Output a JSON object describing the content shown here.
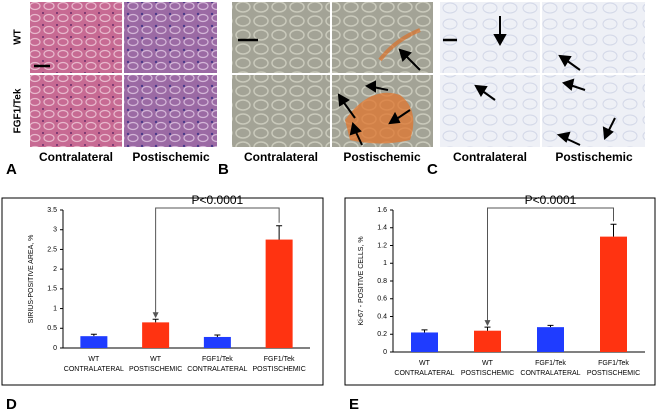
{
  "panels": [
    {
      "letter": "A",
      "row_labels": [
        "WT",
        "FGF1/Tek"
      ],
      "col_labels": [
        "Contralateral",
        "Postischemic"
      ]
    },
    {
      "letter": "B",
      "col_labels": [
        "Contralateral",
        "Postischemic"
      ]
    },
    {
      "letter": "C",
      "col_labels": [
        "Contralateral",
        "Postischemic"
      ]
    }
  ],
  "chart_data": [
    {
      "type": "bar",
      "letter": "D",
      "ylabel": "SIRIUS-POSITIVE AREA, %",
      "categories": [
        [
          "WT",
          "CONTRALATERAL"
        ],
        [
          "WT",
          "POSTISCHEMIC"
        ],
        [
          "FGF1/Tek",
          "CONTRALATERAL"
        ],
        [
          "FGF1/Tek",
          "POSTISCHEMIC"
        ]
      ],
      "values": [
        0.3,
        0.65,
        0.28,
        2.75
      ],
      "errors": [
        0.05,
        0.08,
        0.05,
        0.35
      ],
      "colors": [
        "#1f3cff",
        "#ff3311",
        "#1f3cff",
        "#ff3311"
      ],
      "ylim": [
        0,
        3.5
      ],
      "yticks": [
        0,
        0.5,
        1,
        1.5,
        2,
        2.5,
        3,
        3.5
      ],
      "annotation": "P<0.0001"
    },
    {
      "type": "bar",
      "letter": "E",
      "ylabel": "Ki-67 - POSITIVE CELLS, %",
      "categories": [
        [
          "WT",
          "CONTRALATERAL"
        ],
        [
          "WT",
          "POSTISCHEMIC"
        ],
        [
          "FGF1/Tek",
          "CONTRALATERAL"
        ],
        [
          "FGF1/Tek",
          "POSTISCHEMIC"
        ]
      ],
      "values": [
        0.22,
        0.24,
        0.28,
        1.3
      ],
      "errors": [
        0.03,
        0.04,
        0.02,
        0.14
      ],
      "colors": [
        "#1f3cff",
        "#ff3311",
        "#1f3cff",
        "#ff3311"
      ],
      "ylim": [
        0,
        1.6
      ],
      "yticks": [
        0,
        0.2,
        0.4,
        0.6,
        0.8,
        1,
        1.2,
        1.4,
        1.6
      ],
      "annotation": "P<0.0001"
    }
  ]
}
